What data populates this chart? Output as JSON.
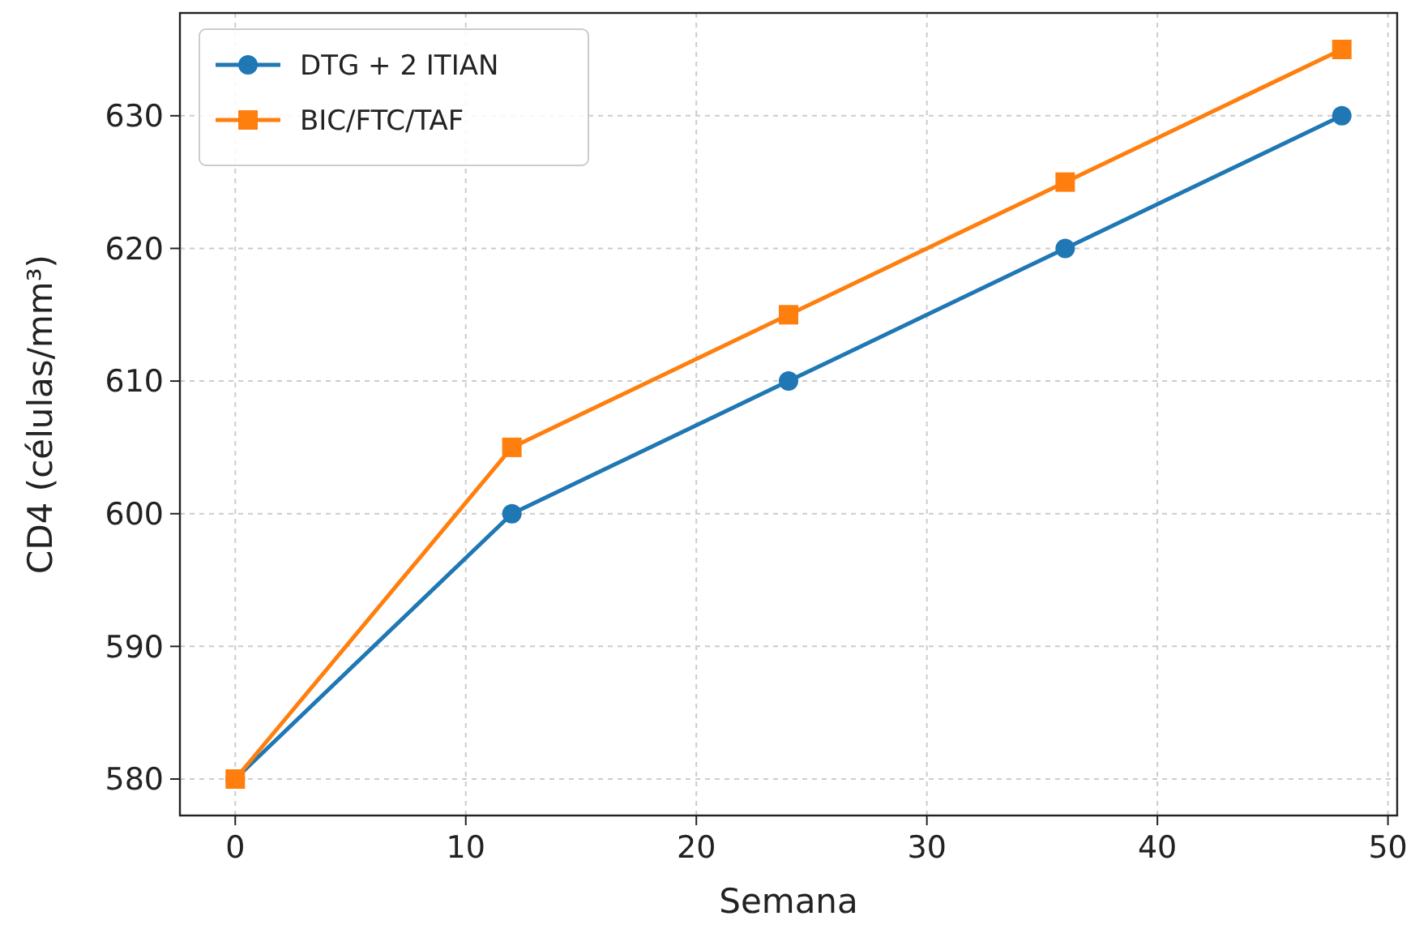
{
  "chart_data": {
    "type": "line",
    "xlabel": "Semana",
    "ylabel": "CD4 (células/mm³)",
    "x": [
      0,
      12,
      24,
      36,
      48
    ],
    "series": [
      {
        "name": "DTG + 2 ITIAN",
        "color": "#1f77b4",
        "values": [
          580,
          600,
          610,
          620,
          630
        ],
        "marker": "circle"
      },
      {
        "name": "BIC/FTC/TAF",
        "color": "#ff7f0e",
        "values": [
          580,
          605,
          615,
          625,
          635
        ],
        "marker": "square"
      }
    ],
    "xlim": [
      -2.4,
      50.4
    ],
    "xticks": [
      0,
      10,
      20,
      30,
      40,
      50
    ],
    "ylim": [
      577.25,
      637.75
    ],
    "yticks": [
      580,
      590,
      600,
      610,
      620,
      630
    ],
    "grid": true,
    "legend": "top left",
    "line_style": "solid"
  }
}
